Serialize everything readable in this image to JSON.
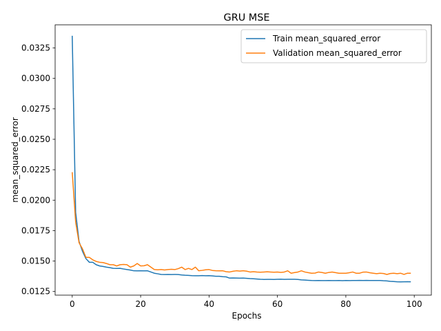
{
  "chart_data": {
    "type": "line",
    "title": "GRU MSE",
    "xlabel": "Epochs",
    "ylabel": "mean_squared_error",
    "xlim": [
      -5,
      105
    ],
    "ylim": [
      0.0122,
      0.0344
    ],
    "x_ticks": [
      0,
      20,
      40,
      60,
      80,
      100
    ],
    "y_ticks": [
      0.0125,
      0.015,
      0.0175,
      0.02,
      0.0225,
      0.025,
      0.0275,
      0.03,
      0.0325
    ],
    "x_tick_labels": [
      "0",
      "20",
      "40",
      "60",
      "80",
      "100"
    ],
    "y_tick_labels": [
      "0.0125",
      "0.0150",
      "0.0175",
      "0.0200",
      "0.0225",
      "0.0250",
      "0.0275",
      "0.0300",
      "0.0325"
    ],
    "grid": false,
    "legend": "top-right",
    "series": [
      {
        "name": "Train mean_squared_error",
        "color": "#1f77b4",
        "keypoints": [
          [
            0,
            0.0335
          ],
          [
            1,
            0.019
          ],
          [
            2,
            0.0166
          ],
          [
            3,
            0.0158
          ],
          [
            4,
            0.0152
          ],
          [
            5,
            0.0149
          ],
          [
            6,
            0.0149
          ],
          [
            7,
            0.0147
          ],
          [
            8,
            0.0146
          ],
          [
            10,
            0.0145
          ],
          [
            12,
            0.0144
          ],
          [
            14,
            0.0144
          ],
          [
            16,
            0.0143
          ],
          [
            18,
            0.0142
          ],
          [
            20,
            0.0142
          ],
          [
            22,
            0.0142
          ],
          [
            24,
            0.014
          ],
          [
            26,
            0.0139
          ],
          [
            28,
            0.0139
          ],
          [
            30,
            0.0139
          ],
          [
            35,
            0.0138
          ],
          [
            40,
            0.0138
          ],
          [
            45,
            0.0137
          ],
          [
            46,
            0.0136
          ],
          [
            50,
            0.0136
          ],
          [
            55,
            0.0135
          ],
          [
            60,
            0.0135
          ],
          [
            65,
            0.0135
          ],
          [
            70,
            0.0134
          ],
          [
            75,
            0.0134
          ],
          [
            80,
            0.0134
          ],
          [
            85,
            0.0134
          ],
          [
            90,
            0.0134
          ],
          [
            95,
            0.0133
          ],
          [
            99,
            0.0133
          ]
        ]
      },
      {
        "name": "Validation mean_squared_error",
        "color": "#ff7f0e",
        "keypoints": [
          [
            0,
            0.0223
          ],
          [
            1,
            0.0182
          ],
          [
            2,
            0.0165
          ],
          [
            3,
            0.016
          ],
          [
            4,
            0.0153
          ],
          [
            5,
            0.0153
          ],
          [
            6,
            0.0151
          ],
          [
            8,
            0.0149
          ],
          [
            10,
            0.0148
          ],
          [
            11,
            0.0147
          ],
          [
            12,
            0.0147
          ],
          [
            13,
            0.0146
          ],
          [
            14,
            0.0147
          ],
          [
            16,
            0.0147
          ],
          [
            17,
            0.0145
          ],
          [
            18,
            0.0146
          ],
          [
            19,
            0.0148
          ],
          [
            20,
            0.0146
          ],
          [
            22,
            0.0147
          ],
          [
            23,
            0.0145
          ],
          [
            24,
            0.0143
          ],
          [
            26,
            0.0143
          ],
          [
            28,
            0.0143
          ],
          [
            30,
            0.0143
          ],
          [
            32,
            0.0145
          ],
          [
            33,
            0.0143
          ],
          [
            34,
            0.0144
          ],
          [
            35,
            0.0143
          ],
          [
            36,
            0.0145
          ],
          [
            37,
            0.0142
          ],
          [
            40,
            0.0143
          ],
          [
            42,
            0.0142
          ],
          [
            44,
            0.0142
          ],
          [
            46,
            0.0141
          ],
          [
            48,
            0.0142
          ],
          [
            50,
            0.0142
          ],
          [
            52,
            0.0141
          ],
          [
            54,
            0.0141
          ],
          [
            56,
            0.0141
          ],
          [
            58,
            0.0141
          ],
          [
            60,
            0.0141
          ],
          [
            62,
            0.0141
          ],
          [
            63,
            0.0142
          ],
          [
            64,
            0.014
          ],
          [
            66,
            0.0141
          ],
          [
            67,
            0.0142
          ],
          [
            68,
            0.0141
          ],
          [
            70,
            0.014
          ],
          [
            72,
            0.0141
          ],
          [
            74,
            0.014
          ],
          [
            76,
            0.0141
          ],
          [
            78,
            0.014
          ],
          [
            80,
            0.014
          ],
          [
            82,
            0.0141
          ],
          [
            83,
            0.014
          ],
          [
            84,
            0.014
          ],
          [
            86,
            0.0141
          ],
          [
            88,
            0.014
          ],
          [
            90,
            0.014
          ],
          [
            92,
            0.0139
          ],
          [
            94,
            0.014
          ],
          [
            96,
            0.014
          ],
          [
            97,
            0.0139
          ],
          [
            98,
            0.014
          ],
          [
            99,
            0.014
          ]
        ]
      }
    ]
  }
}
